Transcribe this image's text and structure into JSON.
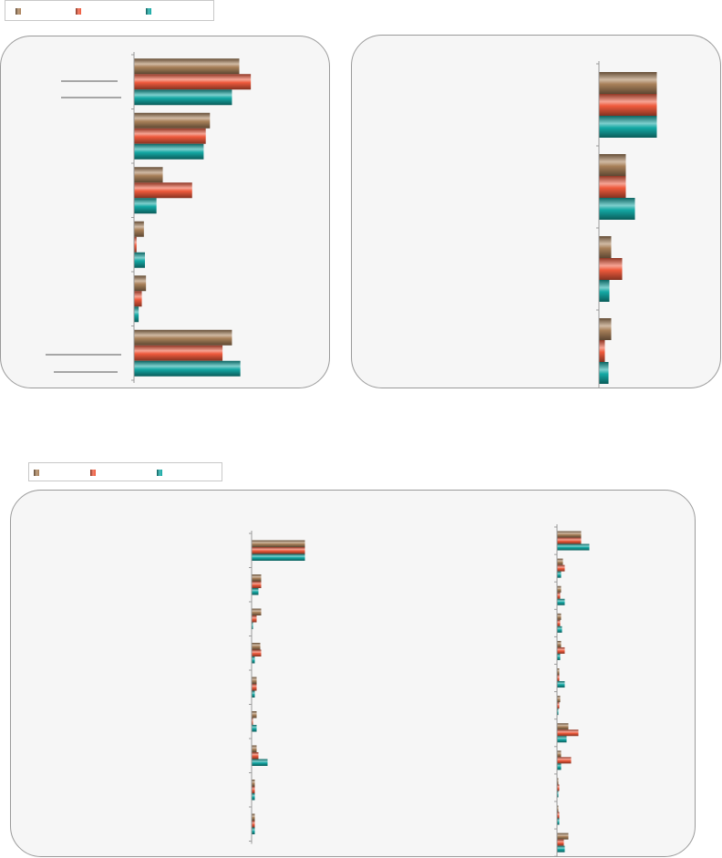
{
  "colors": {
    "series_a": "#a9815a",
    "series_b": "#ef5a3c",
    "series_c": "#14a8a4"
  },
  "legends": [
    {
      "items": [
        {
          "label": ""
        },
        {
          "label": ""
        },
        {
          "label": ""
        }
      ]
    },
    {
      "items": [
        {
          "label": ""
        },
        {
          "label": ""
        },
        {
          "label": ""
        }
      ]
    }
  ],
  "chart_data": [
    {
      "type": "bar",
      "orientation": "horizontal",
      "categories": [
        "",
        "",
        "",
        "",
        "",
        ""
      ],
      "series": [
        {
          "values": [
            100,
            72,
            27,
            9,
            11,
            93
          ]
        },
        {
          "values": [
            111,
            68,
            55,
            2,
            7,
            84
          ]
        },
        {
          "values": [
            93,
            66,
            21,
            10,
            4,
            101
          ]
        }
      ],
      "xlim": [
        0,
        190
      ],
      "grid": false
    },
    {
      "type": "bar",
      "orientation": "horizontal",
      "categories": [
        "",
        "",
        "",
        ""
      ],
      "series": [
        {
          "values": [
            63,
            29,
            13,
            13
          ]
        },
        {
          "values": [
            63,
            29,
            25,
            6
          ]
        },
        {
          "values": [
            63,
            39,
            11,
            10
          ]
        }
      ],
      "xlim": [
        0,
        120
      ],
      "grid": false
    },
    {
      "type": "bar",
      "orientation": "horizontal",
      "categories": [
        "",
        "",
        "",
        "",
        "",
        "",
        "",
        "",
        ""
      ],
      "series": [
        {
          "values": [
            58,
            10,
            10,
            9,
            5,
            5,
            5,
            3,
            3
          ]
        },
        {
          "values": [
            58,
            10,
            5,
            10,
            5,
            1,
            7,
            3,
            3
          ]
        },
        {
          "values": [
            58,
            7,
            1,
            3,
            3,
            5,
            17,
            3,
            3
          ]
        }
      ],
      "xlim": [
        0,
        120
      ],
      "grid": false
    },
    {
      "type": "bar",
      "orientation": "horizontal",
      "categories": [
        "",
        "",
        "",
        "",
        "",
        "",
        "",
        "",
        "",
        "",
        "",
        ""
      ],
      "series": [
        {
          "values": [
            26,
            6,
            4,
            4,
            4,
            2,
            3,
            12,
            4,
            1,
            1,
            12
          ]
        },
        {
          "values": [
            26,
            8,
            3,
            3,
            8,
            2,
            2,
            23,
            15,
            2,
            2,
            7
          ]
        },
        {
          "values": [
            35,
            4,
            8,
            5,
            3,
            8,
            1,
            10,
            4,
            0,
            2,
            8
          ]
        }
      ],
      "xlim": [
        0,
        150
      ],
      "grid": false
    }
  ]
}
